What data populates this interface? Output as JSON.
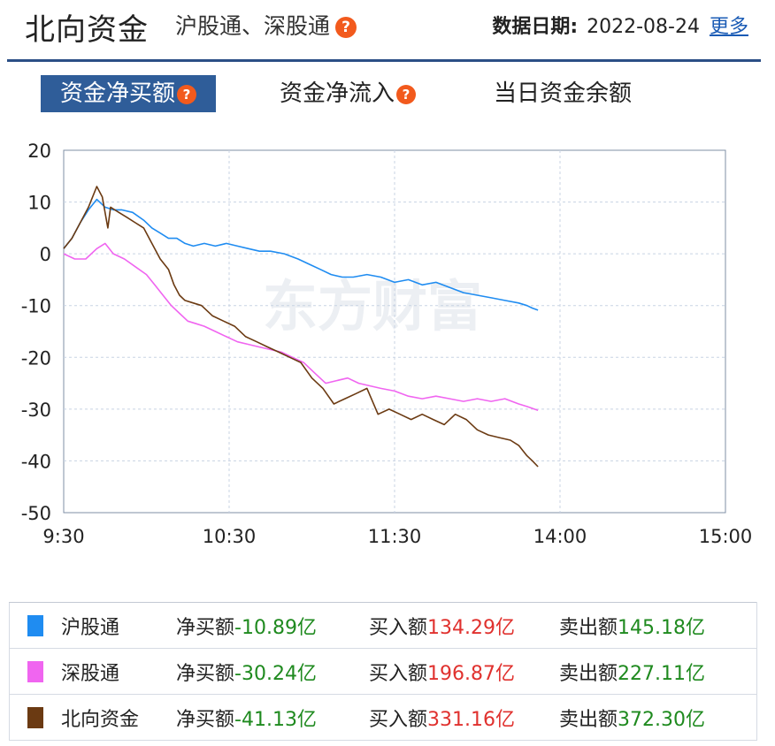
{
  "header": {
    "title": "北向资金",
    "subtitle": "沪股通、深股通",
    "date_label": "数据日期:",
    "date_value": "2022-08-24",
    "more_link": "更多"
  },
  "tabs": [
    {
      "label": "资金净买额",
      "active": true,
      "help": true
    },
    {
      "label": "资金净流入",
      "active": false,
      "help": true
    },
    {
      "label": "当日资金余额",
      "active": false,
      "help": false
    }
  ],
  "help_glyph": "?",
  "watermark": "东方财富",
  "colors": {
    "shanghai": "#1f8cf1",
    "shenzhen": "#f065f0",
    "north": "#6b3a12",
    "negative": "#1f8a1f",
    "positive": "#e0312e",
    "accent": "#2f5d99"
  },
  "chart_data": {
    "type": "line",
    "title": "",
    "xlabel": "",
    "ylabel": "",
    "x_ticks": [
      "9:30",
      "10:30",
      "11:30",
      "14:00",
      "15:00"
    ],
    "x_range_minutes": [
      0,
      240
    ],
    "ylim": [
      -50,
      20
    ],
    "y_ticks": [
      20,
      10,
      0,
      -10,
      -20,
      -30,
      -40,
      -50
    ],
    "grid": true,
    "series": [
      {
        "name": "沪股通",
        "color": "#1f8cf1",
        "points": [
          [
            0,
            1
          ],
          [
            3,
            3
          ],
          [
            6,
            6
          ],
          [
            9,
            8.5
          ],
          [
            12,
            10.5
          ],
          [
            15,
            9
          ],
          [
            18,
            8.5
          ],
          [
            21,
            8.5
          ],
          [
            25,
            8
          ],
          [
            29,
            6.5
          ],
          [
            32,
            5
          ],
          [
            35,
            4
          ],
          [
            38,
            3
          ],
          [
            41,
            3
          ],
          [
            44,
            2
          ],
          [
            47,
            1.5
          ],
          [
            51,
            2
          ],
          [
            55,
            1.5
          ],
          [
            59,
            2
          ],
          [
            63,
            1.5
          ],
          [
            67,
            1
          ],
          [
            71,
            0.5
          ],
          [
            75,
            0.5
          ],
          [
            80,
            0
          ],
          [
            85,
            -1
          ],
          [
            89,
            -2
          ],
          [
            93,
            -3
          ],
          [
            97,
            -4
          ],
          [
            101,
            -4.5
          ],
          [
            105,
            -4.5
          ],
          [
            110,
            -4
          ],
          [
            115,
            -4.5
          ],
          [
            120,
            -5.5
          ],
          [
            125,
            -5
          ],
          [
            130,
            -6
          ],
          [
            135,
            -5.5
          ],
          [
            140,
            -6.5
          ],
          [
            145,
            -7.5
          ],
          [
            150,
            -8
          ],
          [
            155,
            -8.5
          ],
          [
            160,
            -9
          ],
          [
            165,
            -9.5
          ],
          [
            168,
            -10
          ],
          [
            170,
            -10.5
          ],
          [
            172,
            -10.89
          ]
        ]
      },
      {
        "name": "深股通",
        "color": "#f065f0",
        "points": [
          [
            0,
            0
          ],
          [
            4,
            -1
          ],
          [
            8,
            -1
          ],
          [
            12,
            1
          ],
          [
            15,
            2
          ],
          [
            18,
            0
          ],
          [
            22,
            -1
          ],
          [
            26,
            -2.5
          ],
          [
            30,
            -4
          ],
          [
            33,
            -6
          ],
          [
            36,
            -8
          ],
          [
            39,
            -10
          ],
          [
            42,
            -11.5
          ],
          [
            45,
            -13
          ],
          [
            48,
            -13.5
          ],
          [
            51,
            -14
          ],
          [
            55,
            -15
          ],
          [
            59,
            -16
          ],
          [
            63,
            -17
          ],
          [
            67,
            -17.5
          ],
          [
            71,
            -18
          ],
          [
            75,
            -18.5
          ],
          [
            79,
            -19
          ],
          [
            83,
            -20
          ],
          [
            87,
            -21
          ],
          [
            91,
            -23
          ],
          [
            95,
            -25
          ],
          [
            99,
            -24.5
          ],
          [
            103,
            -24
          ],
          [
            107,
            -25
          ],
          [
            111,
            -25.5
          ],
          [
            115,
            -26
          ],
          [
            120,
            -26.5
          ],
          [
            125,
            -27.5
          ],
          [
            130,
            -28
          ],
          [
            135,
            -27.5
          ],
          [
            140,
            -28
          ],
          [
            145,
            -28.5
          ],
          [
            150,
            -28
          ],
          [
            155,
            -28.5
          ],
          [
            160,
            -28
          ],
          [
            165,
            -29
          ],
          [
            168,
            -29.5
          ],
          [
            172,
            -30.24
          ]
        ]
      },
      {
        "name": "北向资金",
        "color": "#6b3a12",
        "points": [
          [
            0,
            1
          ],
          [
            3,
            3
          ],
          [
            6,
            6
          ],
          [
            9,
            9
          ],
          [
            12,
            13
          ],
          [
            14,
            11
          ],
          [
            16,
            5
          ],
          [
            17,
            9
          ],
          [
            20,
            8
          ],
          [
            23,
            7
          ],
          [
            26,
            6
          ],
          [
            29,
            5
          ],
          [
            32,
            2
          ],
          [
            35,
            -1
          ],
          [
            38,
            -3
          ],
          [
            40,
            -6
          ],
          [
            42,
            -8
          ],
          [
            44,
            -9
          ],
          [
            47,
            -9.5
          ],
          [
            50,
            -10
          ],
          [
            54,
            -12
          ],
          [
            58,
            -13
          ],
          [
            62,
            -14
          ],
          [
            66,
            -16
          ],
          [
            70,
            -17
          ],
          [
            74,
            -18
          ],
          [
            78,
            -19
          ],
          [
            82,
            -20
          ],
          [
            86,
            -21
          ],
          [
            90,
            -24
          ],
          [
            94,
            -26
          ],
          [
            98,
            -29
          ],
          [
            102,
            -28
          ],
          [
            106,
            -27
          ],
          [
            110,
            -26
          ],
          [
            114,
            -31
          ],
          [
            118,
            -30
          ],
          [
            122,
            -31
          ],
          [
            126,
            -32
          ],
          [
            130,
            -31
          ],
          [
            134,
            -32
          ],
          [
            138,
            -33
          ],
          [
            142,
            -31
          ],
          [
            146,
            -32
          ],
          [
            150,
            -34
          ],
          [
            154,
            -35
          ],
          [
            158,
            -35.5
          ],
          [
            162,
            -36
          ],
          [
            165,
            -37
          ],
          [
            168,
            -39
          ],
          [
            170,
            -40
          ],
          [
            172,
            -41.13
          ]
        ]
      }
    ]
  },
  "summary": [
    {
      "name": "沪股通",
      "color": "#1f8cf1",
      "net_label": "净买额",
      "net_value": "-10.89亿",
      "buy_label": "买入额",
      "buy_value": "134.29亿",
      "sell_label": "卖出额",
      "sell_value": "145.18亿"
    },
    {
      "name": "深股通",
      "color": "#f065f0",
      "net_label": "净买额",
      "net_value": "-30.24亿",
      "buy_label": "买入额",
      "buy_value": "196.87亿",
      "sell_label": "卖出额",
      "sell_value": "227.11亿"
    },
    {
      "name": "北向资金",
      "color": "#6b3a12",
      "net_label": "净买额",
      "net_value": "-41.13亿",
      "buy_label": "买入额",
      "buy_value": "331.16亿",
      "sell_label": "卖出额",
      "sell_value": "372.30亿"
    }
  ]
}
